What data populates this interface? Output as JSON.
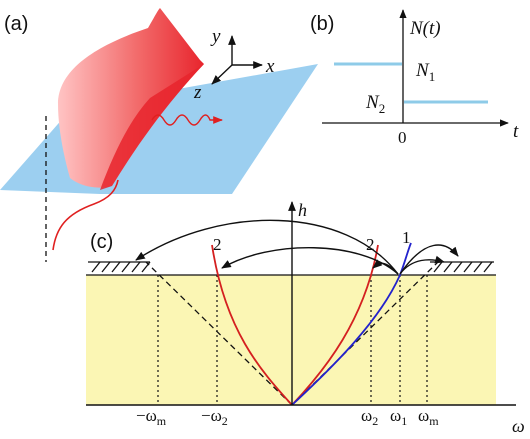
{
  "panel_a": {
    "label": "(a)",
    "axes": {
      "y": "y",
      "x": "x",
      "z": "z"
    },
    "colors": {
      "plane": "#9ccff0",
      "sheet": "#e8252d",
      "sheet_light": "#ffc4c4",
      "wave": "#e02020"
    }
  },
  "panel_b": {
    "label": "(b)",
    "ylabel": "N(t)",
    "xlabel": "t",
    "levels": {
      "high": "N1",
      "low": "N2"
    },
    "origin": "0",
    "colors": {
      "curve": "#8ecbe8"
    }
  },
  "panel_c": {
    "label": "(c)",
    "ylabel": "h",
    "xlabel": "ω",
    "mode_labels": {
      "mode1": "1",
      "mode2_left": "2",
      "mode2_right": "2"
    },
    "ticks": {
      "minus_m": "−ω",
      "minus_2": "−ω",
      "plus_2": "ω",
      "plus_1": "ω",
      "plus_m": "ω"
    },
    "tick_subs": {
      "minus_m": "m",
      "minus_2": "2",
      "plus_2": "2",
      "plus_1": "1",
      "plus_m": "m"
    },
    "colors": {
      "region": "#fbf6b4",
      "mode1": "#2222cc",
      "mode2": "#d42020"
    }
  }
}
